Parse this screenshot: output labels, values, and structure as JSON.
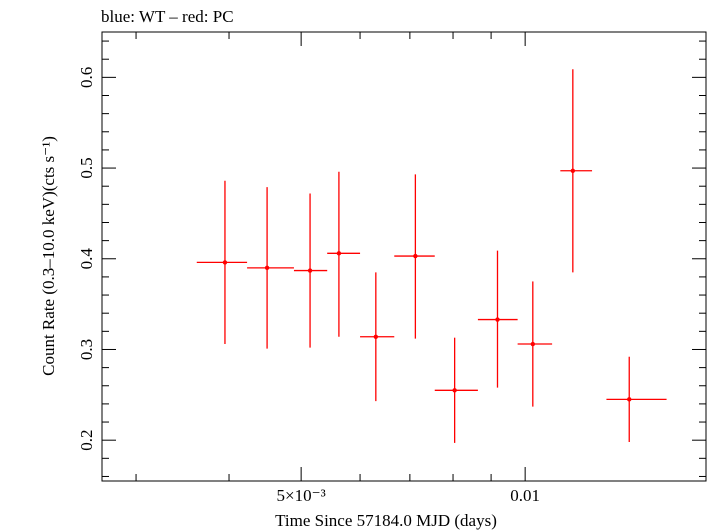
{
  "chart_data": {
    "type": "scatter",
    "title": "blue: WT – red: PC",
    "xlabel": "Time Since 57184.0 MJD (days)",
    "ylabel": "Count Rate (0.3–10.0 keV)(cts s⁻¹)",
    "x_scale": "log",
    "xlim": [
      0.0027,
      0.0175
    ],
    "ylim": [
      0.155,
      0.65
    ],
    "x_ticks": [
      {
        "value": 0.005,
        "label": "5×10⁻³"
      },
      {
        "value": 0.01,
        "label": "0.01"
      }
    ],
    "y_ticks": [
      {
        "value": 0.2,
        "label": "0.2"
      },
      {
        "value": 0.3,
        "label": "0.3"
      },
      {
        "value": 0.4,
        "label": "0.4"
      },
      {
        "value": 0.5,
        "label": "0.5"
      },
      {
        "value": 0.6,
        "label": "0.6"
      }
    ],
    "grid": false,
    "series": [
      {
        "color": "#ff0000",
        "points": [
          {
            "x": 0.00395,
            "x_lo": 0.00362,
            "x_hi": 0.00423,
            "y": 0.396,
            "y_lo": 0.306,
            "y_hi": 0.486
          },
          {
            "x": 0.0045,
            "x_lo": 0.00423,
            "x_hi": 0.00489,
            "y": 0.39,
            "y_lo": 0.301,
            "y_hi": 0.479
          },
          {
            "x": 0.00514,
            "x_lo": 0.00489,
            "x_hi": 0.00542,
            "y": 0.387,
            "y_lo": 0.302,
            "y_hi": 0.472
          },
          {
            "x": 0.00562,
            "x_lo": 0.00542,
            "x_hi": 0.006,
            "y": 0.406,
            "y_lo": 0.314,
            "y_hi": 0.496
          },
          {
            "x": 0.0063,
            "x_lo": 0.006,
            "x_hi": 0.00667,
            "y": 0.314,
            "y_lo": 0.243,
            "y_hi": 0.385
          },
          {
            "x": 0.00712,
            "x_lo": 0.00667,
            "x_hi": 0.00756,
            "y": 0.403,
            "y_lo": 0.312,
            "y_hi": 0.493
          },
          {
            "x": 0.00804,
            "x_lo": 0.00756,
            "x_hi": 0.00864,
            "y": 0.255,
            "y_lo": 0.197,
            "y_hi": 0.313
          },
          {
            "x": 0.00918,
            "x_lo": 0.00864,
            "x_hi": 0.00977,
            "y": 0.333,
            "y_lo": 0.258,
            "y_hi": 0.409
          },
          {
            "x": 0.01024,
            "x_lo": 0.00977,
            "x_hi": 0.01087,
            "y": 0.306,
            "y_lo": 0.237,
            "y_hi": 0.375
          },
          {
            "x": 0.01159,
            "x_lo": 0.01115,
            "x_hi": 0.0123,
            "y": 0.497,
            "y_lo": 0.385,
            "y_hi": 0.609
          },
          {
            "x": 0.0138,
            "x_lo": 0.01286,
            "x_hi": 0.01549,
            "y": 0.245,
            "y_lo": 0.198,
            "y_hi": 0.292
          }
        ]
      }
    ]
  }
}
